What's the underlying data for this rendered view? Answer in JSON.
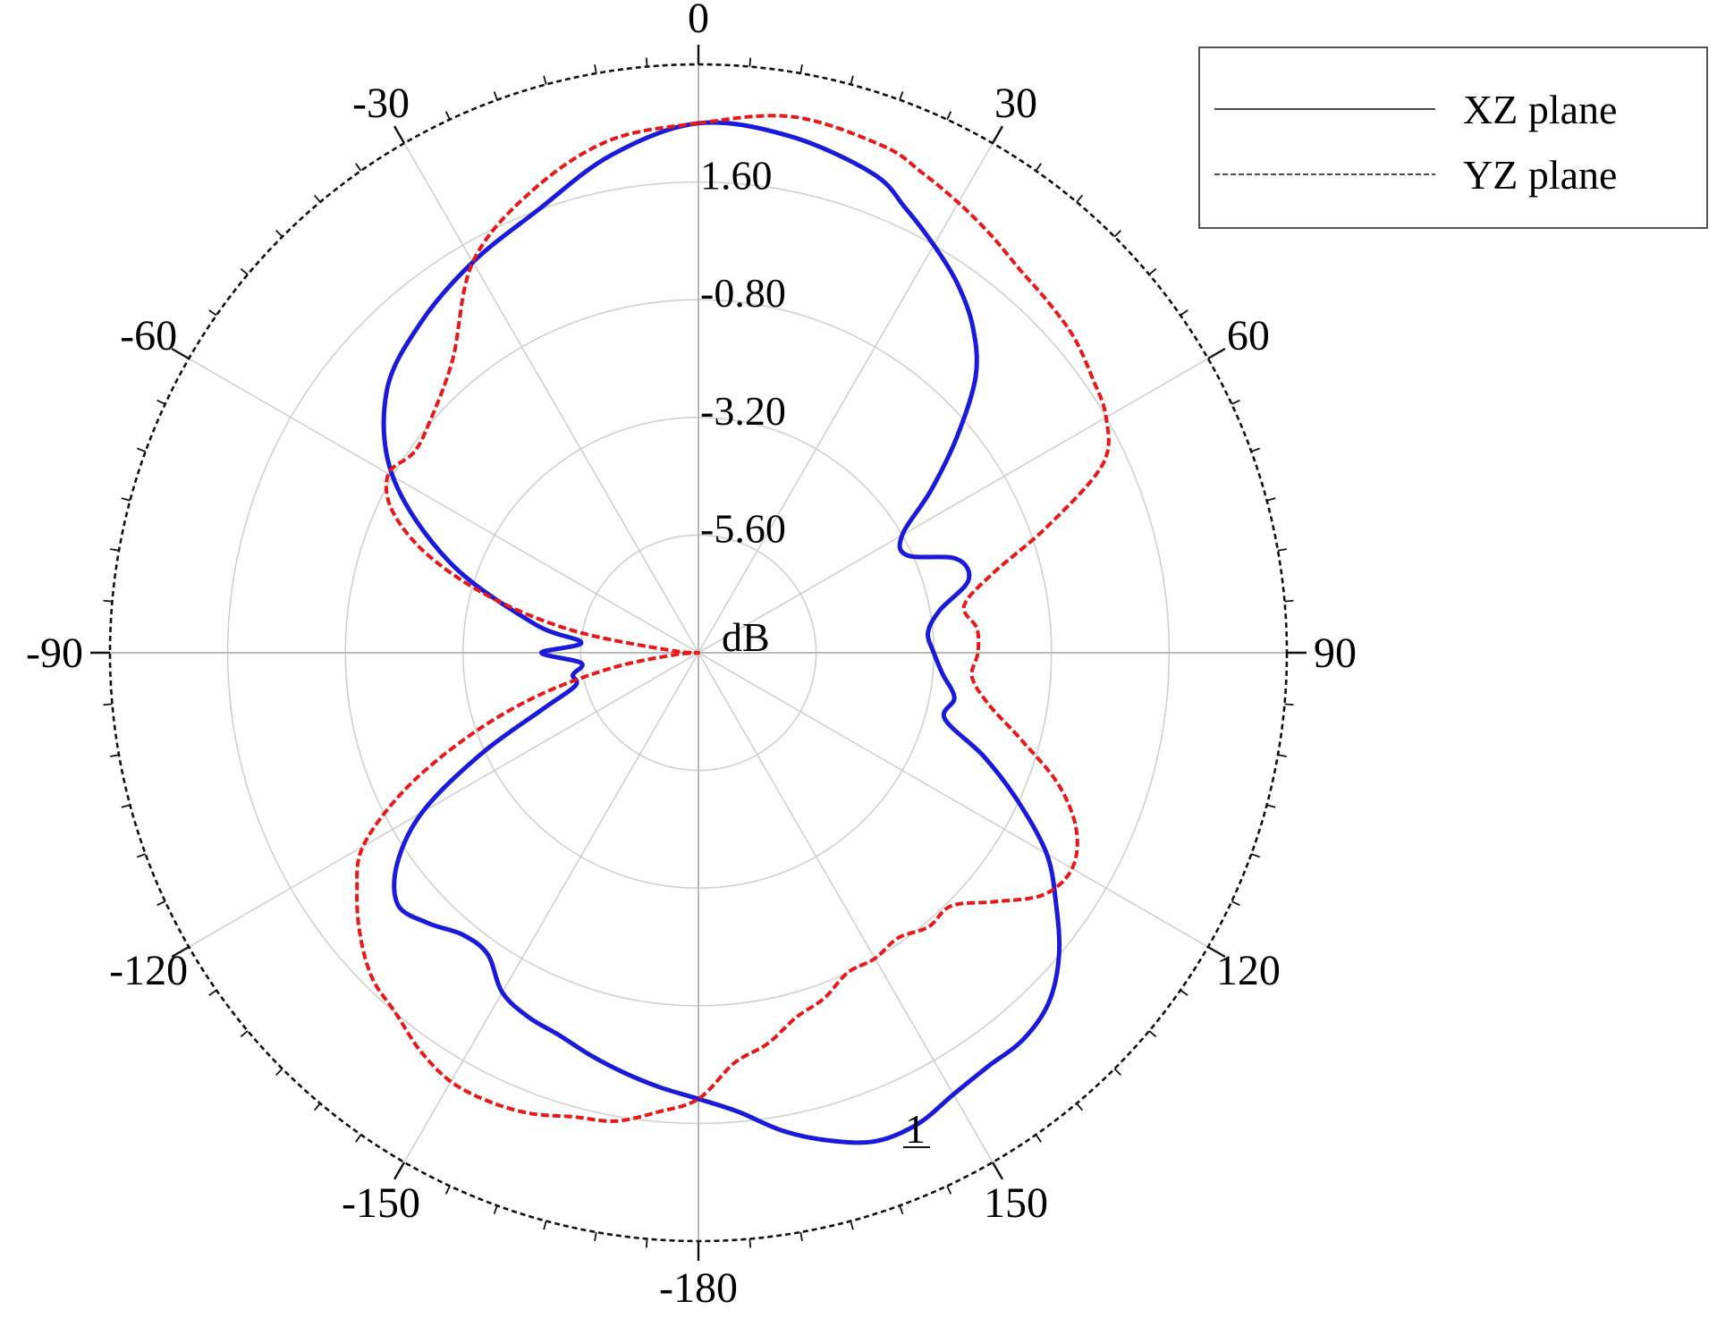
{
  "chart_data": {
    "type": "polar-line",
    "unit_label": "dB",
    "marker_label": "1",
    "theta_direction": "clockwise",
    "theta_zero": "top",
    "r_min": -8.0,
    "r_max": 4.0,
    "r_ticks": [
      {
        "value": 1.6,
        "label": "1.60"
      },
      {
        "value": -0.8,
        "label": "-0.80"
      },
      {
        "value": -3.2,
        "label": "-3.20"
      },
      {
        "value": -5.6,
        "label": "-5.60"
      }
    ],
    "angle_labels": [
      {
        "angle": 0,
        "label": "0"
      },
      {
        "angle": 30,
        "label": "30"
      },
      {
        "angle": 60,
        "label": "60"
      },
      {
        "angle": 90,
        "label": "90"
      },
      {
        "angle": 120,
        "label": "120"
      },
      {
        "angle": 150,
        "label": "150"
      },
      {
        "angle": 180,
        "label": "-180"
      },
      {
        "angle": 210,
        "label": "-150"
      },
      {
        "angle": 240,
        "label": "-120"
      },
      {
        "angle": 270,
        "label": "-90"
      },
      {
        "angle": 300,
        "label": "-60"
      },
      {
        "angle": 330,
        "label": "-30"
      }
    ],
    "legend_position": "top-right",
    "series": [
      {
        "name": "XZ plane",
        "color": "#1a1adb",
        "style": "solid",
        "theta": [
          0,
          10,
          20,
          25,
          30,
          35,
          40,
          45,
          50,
          55,
          60,
          65,
          70,
          75,
          80,
          85,
          90,
          95,
          100,
          105,
          110,
          115,
          120,
          125,
          130,
          135,
          140,
          145,
          150,
          155,
          160,
          165,
          170,
          175,
          180,
          185,
          190,
          195,
          200,
          205,
          210,
          215,
          220,
          225,
          230,
          235,
          240,
          245,
          250,
          255,
          260,
          265,
          270,
          275,
          280,
          290,
          300,
          310,
          320,
          330,
          340,
          350
        ],
        "r": [
          2.8,
          2.7,
          2.4,
          2.0,
          1.6,
          1.2,
          0.7,
          0.0,
          -1.1,
          -2.2,
          -3.2,
          -3.3,
          -2.4,
          -2.3,
          -3.0,
          -3.3,
          -3.2,
          -3.0,
          -2.7,
          -2.8,
          -1.8,
          -0.8,
          0.2,
          0.9,
          1.6,
          2.1,
          2.3,
          2.3,
          2.4,
          2.6,
          2.6,
          2.3,
          1.9,
          1.4,
          1.1,
          0.9,
          0.7,
          0.5,
          0.3,
          0.2,
          0.0,
          -0.5,
          -0.5,
          -0.2,
          0.0,
          -0.5,
          -1.5,
          -3.1,
          -4.6,
          -5.4,
          -5.4,
          -5.6,
          -4.8,
          -5.6,
          -4.6,
          -2.6,
          -0.8,
          0.3,
          0.8,
          1.2,
          1.6,
          2.3
        ]
      },
      {
        "name": "YZ plane",
        "color": "#e81818",
        "style": "dashed",
        "theta": [
          0,
          10,
          20,
          25,
          30,
          35,
          40,
          45,
          50,
          55,
          60,
          65,
          70,
          75,
          80,
          85,
          90,
          95,
          100,
          105,
          110,
          115,
          120,
          125,
          130,
          135,
          140,
          145,
          150,
          155,
          160,
          165,
          170,
          175,
          180,
          185,
          190,
          195,
          200,
          205,
          210,
          215,
          220,
          225,
          230,
          235,
          240,
          245,
          250,
          255,
          260,
          265,
          270,
          275,
          280,
          285,
          290,
          295,
          300,
          305,
          310,
          320,
          330,
          340,
          350
        ],
        "r": [
          2.8,
          3.1,
          3.0,
          2.8,
          2.6,
          2.4,
          2.2,
          2.1,
          2.0,
          1.8,
          1.6,
          1.1,
          -0.4,
          -1.8,
          -2.5,
          -2.3,
          -2.3,
          -2.4,
          -2.0,
          -1.2,
          -0.2,
          0.5,
          0.8,
          0.6,
          -0.1,
          -0.7,
          -0.7,
          -0.9,
          -0.8,
          -0.8,
          -0.5,
          -0.3,
          0.1,
          0.4,
          1.1,
          1.4,
          1.7,
          1.8,
          2.0,
          2.1,
          2.1,
          1.9,
          1.6,
          1.4,
          1.0,
          0.5,
          -0.1,
          -1.4,
          -3.0,
          -4.6,
          -6.2,
          -7.5,
          -8.0,
          -7.4,
          -5.4,
          -3.6,
          -2.1,
          -1.1,
          -0.7,
          -0.9,
          -0.8,
          -0.2,
          1.2,
          2.0,
          2.6
        ]
      }
    ]
  }
}
